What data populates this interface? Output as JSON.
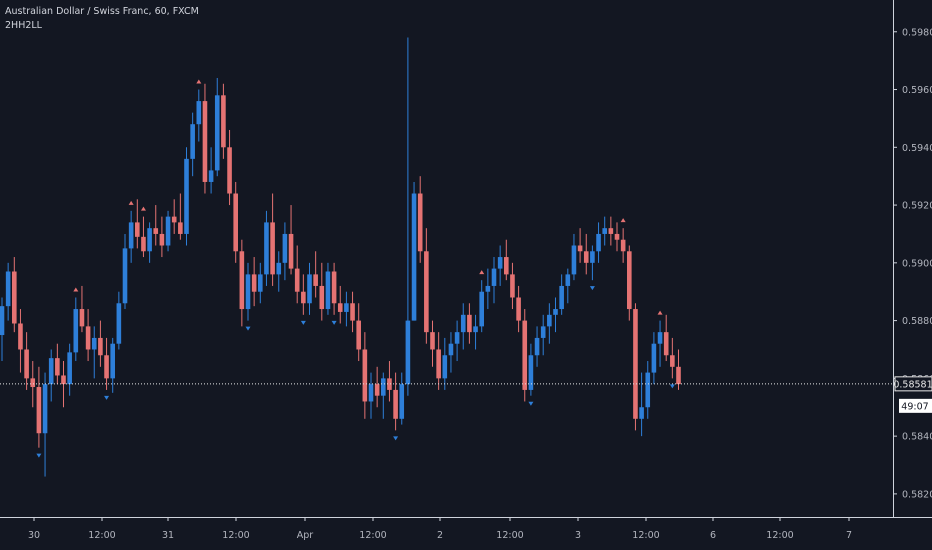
{
  "legend": {
    "title": "Australian Dollar / Swiss Franc, 60, FXCM",
    "indicator": "2HH2LL"
  },
  "colors": {
    "background": "#131722",
    "bull": "#2e7fd9",
    "bear": "#e57373",
    "axis_text": "#b2b5be",
    "axis_line": "#cfd3dc",
    "price_line": "#e8e8e8"
  },
  "chart_data": {
    "type": "candlestick",
    "symbol": "AUDCHF",
    "timeframe": "60",
    "ylim": [
      0.5812,
      0.5991
    ],
    "y_ticks": [
      "0.59800",
      "0.59600",
      "0.59400",
      "0.59200",
      "0.59000",
      "0.58800",
      "0.58600",
      "0.58400",
      "0.58200"
    ],
    "x_ticks": [
      "30",
      "12:00",
      "31",
      "12:00",
      "Apr",
      "12:00",
      "2",
      "12:00",
      "3",
      "12:00",
      "6",
      "12:00",
      "7"
    ],
    "last_price": "0.58581",
    "countdown": "49:07",
    "ohlc": [
      [
        0.5875,
        0.5888,
        0.5866,
        0.5885
      ],
      [
        0.5885,
        0.59,
        0.588,
        0.5897
      ],
      [
        0.5897,
        0.5902,
        0.5876,
        0.5879
      ],
      [
        0.5879,
        0.5884,
        0.5862,
        0.587
      ],
      [
        0.587,
        0.5876,
        0.5856,
        0.586
      ],
      [
        0.586,
        0.5866,
        0.585,
        0.5857
      ],
      [
        0.5857,
        0.5864,
        0.5836,
        0.5841
      ],
      [
        0.5841,
        0.5862,
        0.5826,
        0.5858
      ],
      [
        0.5858,
        0.587,
        0.5852,
        0.5867
      ],
      [
        0.5867,
        0.5872,
        0.5858,
        0.5861
      ],
      [
        0.5861,
        0.5866,
        0.585,
        0.5858
      ],
      [
        0.5858,
        0.5872,
        0.5854,
        0.5869
      ],
      [
        0.5869,
        0.5888,
        0.5866,
        0.5884
      ],
      [
        0.5884,
        0.5892,
        0.5876,
        0.5878
      ],
      [
        0.5878,
        0.5884,
        0.5866,
        0.587
      ],
      [
        0.587,
        0.5878,
        0.586,
        0.5874
      ],
      [
        0.5874,
        0.588,
        0.5864,
        0.5868
      ],
      [
        0.5868,
        0.5874,
        0.5856,
        0.586
      ],
      [
        0.586,
        0.5874,
        0.5855,
        0.5872
      ],
      [
        0.5872,
        0.589,
        0.587,
        0.5886
      ],
      [
        0.5886,
        0.591,
        0.5884,
        0.5905
      ],
      [
        0.5905,
        0.5918,
        0.59,
        0.5914
      ],
      [
        0.5914,
        0.5922,
        0.5905,
        0.5909
      ],
      [
        0.5909,
        0.5916,
        0.5902,
        0.5904
      ],
      [
        0.5904,
        0.5914,
        0.59,
        0.5912
      ],
      [
        0.5912,
        0.592,
        0.5906,
        0.591
      ],
      [
        0.591,
        0.5916,
        0.5902,
        0.5906
      ],
      [
        0.5906,
        0.5918,
        0.5904,
        0.5916
      ],
      [
        0.5916,
        0.5922,
        0.591,
        0.5914
      ],
      [
        0.5914,
        0.5924,
        0.5908,
        0.591
      ],
      [
        0.591,
        0.594,
        0.5906,
        0.5936
      ],
      [
        0.5936,
        0.5952,
        0.593,
        0.5948
      ],
      [
        0.5948,
        0.596,
        0.5942,
        0.5956
      ],
      [
        0.5956,
        0.5962,
        0.5924,
        0.5928
      ],
      [
        0.5928,
        0.594,
        0.5924,
        0.5932
      ],
      [
        0.5932,
        0.5964,
        0.593,
        0.5958
      ],
      [
        0.5958,
        0.5962,
        0.5936,
        0.594
      ],
      [
        0.594,
        0.5946,
        0.592,
        0.5924
      ],
      [
        0.5924,
        0.5928,
        0.59,
        0.5904
      ],
      [
        0.5904,
        0.5908,
        0.5878,
        0.5884
      ],
      [
        0.5884,
        0.59,
        0.588,
        0.5896
      ],
      [
        0.5896,
        0.5902,
        0.5885,
        0.589
      ],
      [
        0.589,
        0.59,
        0.5886,
        0.5896
      ],
      [
        0.5896,
        0.5918,
        0.5892,
        0.5914
      ],
      [
        0.5914,
        0.5924,
        0.5892,
        0.5896
      ],
      [
        0.5896,
        0.5904,
        0.589,
        0.59
      ],
      [
        0.59,
        0.5914,
        0.5894,
        0.591
      ],
      [
        0.591,
        0.592,
        0.5896,
        0.5898
      ],
      [
        0.5898,
        0.5906,
        0.5886,
        0.589
      ],
      [
        0.589,
        0.5896,
        0.5882,
        0.5886
      ],
      [
        0.5886,
        0.59,
        0.5882,
        0.5896
      ],
      [
        0.5896,
        0.5904,
        0.5888,
        0.5892
      ],
      [
        0.5892,
        0.59,
        0.588,
        0.5884
      ],
      [
        0.5884,
        0.59,
        0.5882,
        0.5897
      ],
      [
        0.5897,
        0.59,
        0.5882,
        0.5886
      ],
      [
        0.5886,
        0.5892,
        0.5879,
        0.5883
      ],
      [
        0.5883,
        0.589,
        0.5878,
        0.5886
      ],
      [
        0.5886,
        0.589,
        0.5876,
        0.588
      ],
      [
        0.588,
        0.5886,
        0.5866,
        0.587
      ],
      [
        0.587,
        0.5876,
        0.5846,
        0.5852
      ],
      [
        0.5852,
        0.5862,
        0.5846,
        0.5858
      ],
      [
        0.5858,
        0.5864,
        0.585,
        0.5854
      ],
      [
        0.5854,
        0.5862,
        0.5846,
        0.586
      ],
      [
        0.586,
        0.5866,
        0.5852,
        0.5856
      ],
      [
        0.5856,
        0.5862,
        0.5842,
        0.5846
      ],
      [
        0.5846,
        0.5862,
        0.5844,
        0.5858
      ],
      [
        0.5858,
        0.5978,
        0.5854,
        0.588
      ],
      [
        0.588,
        0.5928,
        0.588,
        0.5924
      ],
      [
        0.5924,
        0.593,
        0.59,
        0.5904
      ],
      [
        0.5904,
        0.5912,
        0.5872,
        0.5876
      ],
      [
        0.5876,
        0.588,
        0.5864,
        0.587
      ],
      [
        0.587,
        0.5876,
        0.5856,
        0.586
      ],
      [
        0.586,
        0.5874,
        0.5856,
        0.5868
      ],
      [
        0.5868,
        0.5876,
        0.5862,
        0.5872
      ],
      [
        0.5872,
        0.588,
        0.5866,
        0.5876
      ],
      [
        0.5876,
        0.5886,
        0.587,
        0.5882
      ],
      [
        0.5882,
        0.5886,
        0.5872,
        0.5876
      ],
      [
        0.5876,
        0.5882,
        0.587,
        0.5878
      ],
      [
        0.5878,
        0.5894,
        0.5876,
        0.589
      ],
      [
        0.589,
        0.5898,
        0.5884,
        0.5892
      ],
      [
        0.5892,
        0.5902,
        0.5886,
        0.5898
      ],
      [
        0.5898,
        0.5906,
        0.5892,
        0.5902
      ],
      [
        0.5902,
        0.5908,
        0.5894,
        0.5896
      ],
      [
        0.5896,
        0.59,
        0.5884,
        0.5888
      ],
      [
        0.5888,
        0.5892,
        0.5876,
        0.588
      ],
      [
        0.588,
        0.5884,
        0.5852,
        0.5856
      ],
      [
        0.5856,
        0.5872,
        0.5854,
        0.5868
      ],
      [
        0.5868,
        0.5878,
        0.5864,
        0.5874
      ],
      [
        0.5874,
        0.5882,
        0.5868,
        0.5878
      ],
      [
        0.5878,
        0.5886,
        0.5872,
        0.5882
      ],
      [
        0.5882,
        0.5888,
        0.5876,
        0.5884
      ],
      [
        0.5884,
        0.5896,
        0.5882,
        0.5892
      ],
      [
        0.5892,
        0.5898,
        0.5886,
        0.5896
      ],
      [
        0.5896,
        0.591,
        0.5894,
        0.5906
      ],
      [
        0.5906,
        0.5912,
        0.59,
        0.5904
      ],
      [
        0.5904,
        0.591,
        0.5896,
        0.59
      ],
      [
        0.59,
        0.5906,
        0.5894,
        0.5904
      ],
      [
        0.5904,
        0.5914,
        0.59,
        0.591
      ],
      [
        0.591,
        0.5916,
        0.5906,
        0.5912
      ],
      [
        0.5912,
        0.5916,
        0.5906,
        0.591
      ],
      [
        0.591,
        0.5914,
        0.5904,
        0.5908
      ],
      [
        0.5908,
        0.5912,
        0.59,
        0.5904
      ],
      [
        0.5904,
        0.5906,
        0.588,
        0.5884
      ],
      [
        0.5884,
        0.5886,
        0.5842,
        0.5846
      ],
      [
        0.5846,
        0.5862,
        0.584,
        0.585
      ],
      [
        0.585,
        0.5866,
        0.5846,
        0.5862
      ],
      [
        0.5862,
        0.5876,
        0.5858,
        0.5872
      ],
      [
        0.5872,
        0.588,
        0.5864,
        0.5876
      ],
      [
        0.5876,
        0.5882,
        0.5866,
        0.5868
      ],
      [
        0.5868,
        0.5874,
        0.586,
        0.5864
      ],
      [
        0.5864,
        0.587,
        0.5856,
        0.5858
      ]
    ],
    "markers": [
      {
        "i": 6,
        "dir": "down"
      },
      {
        "i": 12,
        "dir": "up"
      },
      {
        "i": 17,
        "dir": "down"
      },
      {
        "i": 21,
        "dir": "up"
      },
      {
        "i": 23,
        "dir": "up"
      },
      {
        "i": 32,
        "dir": "up"
      },
      {
        "i": 40,
        "dir": "down"
      },
      {
        "i": 49,
        "dir": "down"
      },
      {
        "i": 54,
        "dir": "down"
      },
      {
        "i": 64,
        "dir": "down"
      },
      {
        "i": 78,
        "dir": "up"
      },
      {
        "i": 86,
        "dir": "down"
      },
      {
        "i": 96,
        "dir": "down"
      },
      {
        "i": 101,
        "dir": "up"
      },
      {
        "i": 107,
        "dir": "up"
      },
      {
        "i": 109,
        "dir": "down"
      }
    ]
  }
}
